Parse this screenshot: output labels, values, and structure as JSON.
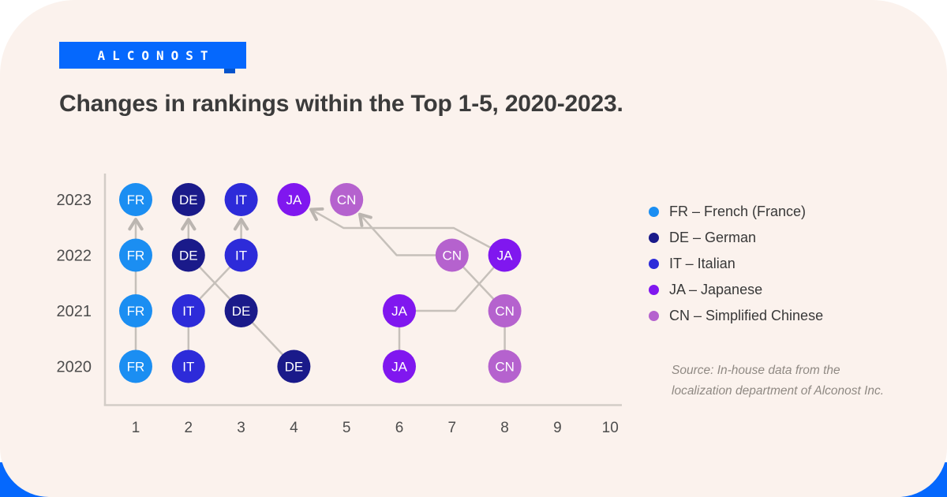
{
  "brand": {
    "logo_text": "ALCONOST",
    "brand_blue": "#0568FD",
    "logo_step_blue": "#0353CC",
    "bottom_bar_blue": "#0568FD"
  },
  "title": "Changes in rankings within the Top 1-5, 2020-2023.",
  "legend": {
    "items": [
      {
        "code": "FR",
        "label": "FR – French (France)",
        "color": "#1B8EF2"
      },
      {
        "code": "DE",
        "label": "DE – German",
        "color": "#1A1A8A"
      },
      {
        "code": "IT",
        "label": "IT – Italian",
        "color": "#2D2BD9"
      },
      {
        "code": "JA",
        "label": "JA – Japanese",
        "color": "#8017EF"
      },
      {
        "code": "CN",
        "label": "CN – Simplified Chinese",
        "color": "#B562CE"
      }
    ]
  },
  "source": {
    "line1": "Source: In-house data from the",
    "line2": "localization department of Alconost Inc."
  },
  "chart_data": {
    "type": "scatter",
    "subtype": "bump-ranking",
    "title": "Changes in rankings within the Top 1-5, 2020-2023.",
    "xlabel": "",
    "ylabel": "",
    "x_axis": {
      "ticks": [
        1,
        2,
        3,
        4,
        5,
        6,
        7,
        8,
        9,
        10
      ],
      "range": [
        1,
        10
      ]
    },
    "y_axis": {
      "ticks": [
        "2023",
        "2022",
        "2021",
        "2020"
      ]
    },
    "grid": false,
    "legend_position": "right",
    "styles": {
      "axis_color": "#D3CDC7",
      "line_color": "#C6C0BA",
      "arrow_color": "#BBB5B0",
      "tick_label_color": "#4D4D4D",
      "node_label_color": "#FFFFFF"
    },
    "series": [
      {
        "code": "FR",
        "name": "French (France)",
        "color": "#1B8EF2",
        "rankings": {
          "2020": 1,
          "2021": 1,
          "2022": 1,
          "2023": 1
        },
        "path": [
          {
            "year": 2020,
            "rank": 1
          },
          {
            "year": 2021,
            "rank": 1
          },
          {
            "year": 2022,
            "rank": 1
          },
          {
            "year": 2023,
            "rank": 1
          }
        ]
      },
      {
        "code": "DE",
        "name": "German",
        "color": "#1A1A8A",
        "rankings": {
          "2020": 4,
          "2021": 3,
          "2022": 2,
          "2023": 2
        },
        "path": [
          {
            "year": 2020,
            "rank": 4
          },
          {
            "year": 2021,
            "rank": 3
          },
          {
            "year": 2022,
            "rank": 2
          },
          {
            "year": 2023,
            "rank": 2
          }
        ]
      },
      {
        "code": "IT",
        "name": "Italian",
        "color": "#2D2BD9",
        "rankings": {
          "2020": 2,
          "2021": 2,
          "2022": 3,
          "2023": 3
        },
        "path": [
          {
            "year": 2020,
            "rank": 2
          },
          {
            "year": 2021,
            "rank": 2
          },
          {
            "year": 2022,
            "rank": 3
          },
          {
            "year": 2023,
            "rank": 3
          }
        ]
      },
      {
        "code": "JA",
        "name": "Japanese",
        "color": "#8017EF",
        "rankings": {
          "2020": 6,
          "2021": 6,
          "2022": 8,
          "2023": 4
        },
        "path": [
          {
            "year": 2020,
            "rank": 6
          },
          {
            "year": 2021,
            "rank": 6
          },
          {
            "year": 2021,
            "rank": 7.06,
            "waypoint": true
          },
          {
            "year": 2022,
            "rank": 8
          },
          {
            "year": 2022.49,
            "rank": 7.03,
            "waypoint": true
          },
          {
            "year": 2022.49,
            "rank": 4.94,
            "waypoint": true
          },
          {
            "year": 2023,
            "rank": 4
          }
        ]
      },
      {
        "code": "CN",
        "name": "Simplified Chinese",
        "color": "#B562CE",
        "rankings": {
          "2020": 8,
          "2021": 8,
          "2022": 7,
          "2023": 5
        },
        "path": [
          {
            "year": 2020,
            "rank": 8
          },
          {
            "year": 2021,
            "rank": 8
          },
          {
            "year": 2022,
            "rank": 7
          },
          {
            "year": 2022,
            "rank": 5.95,
            "waypoint": true
          },
          {
            "year": 2023,
            "rank": 5
          }
        ]
      }
    ]
  }
}
